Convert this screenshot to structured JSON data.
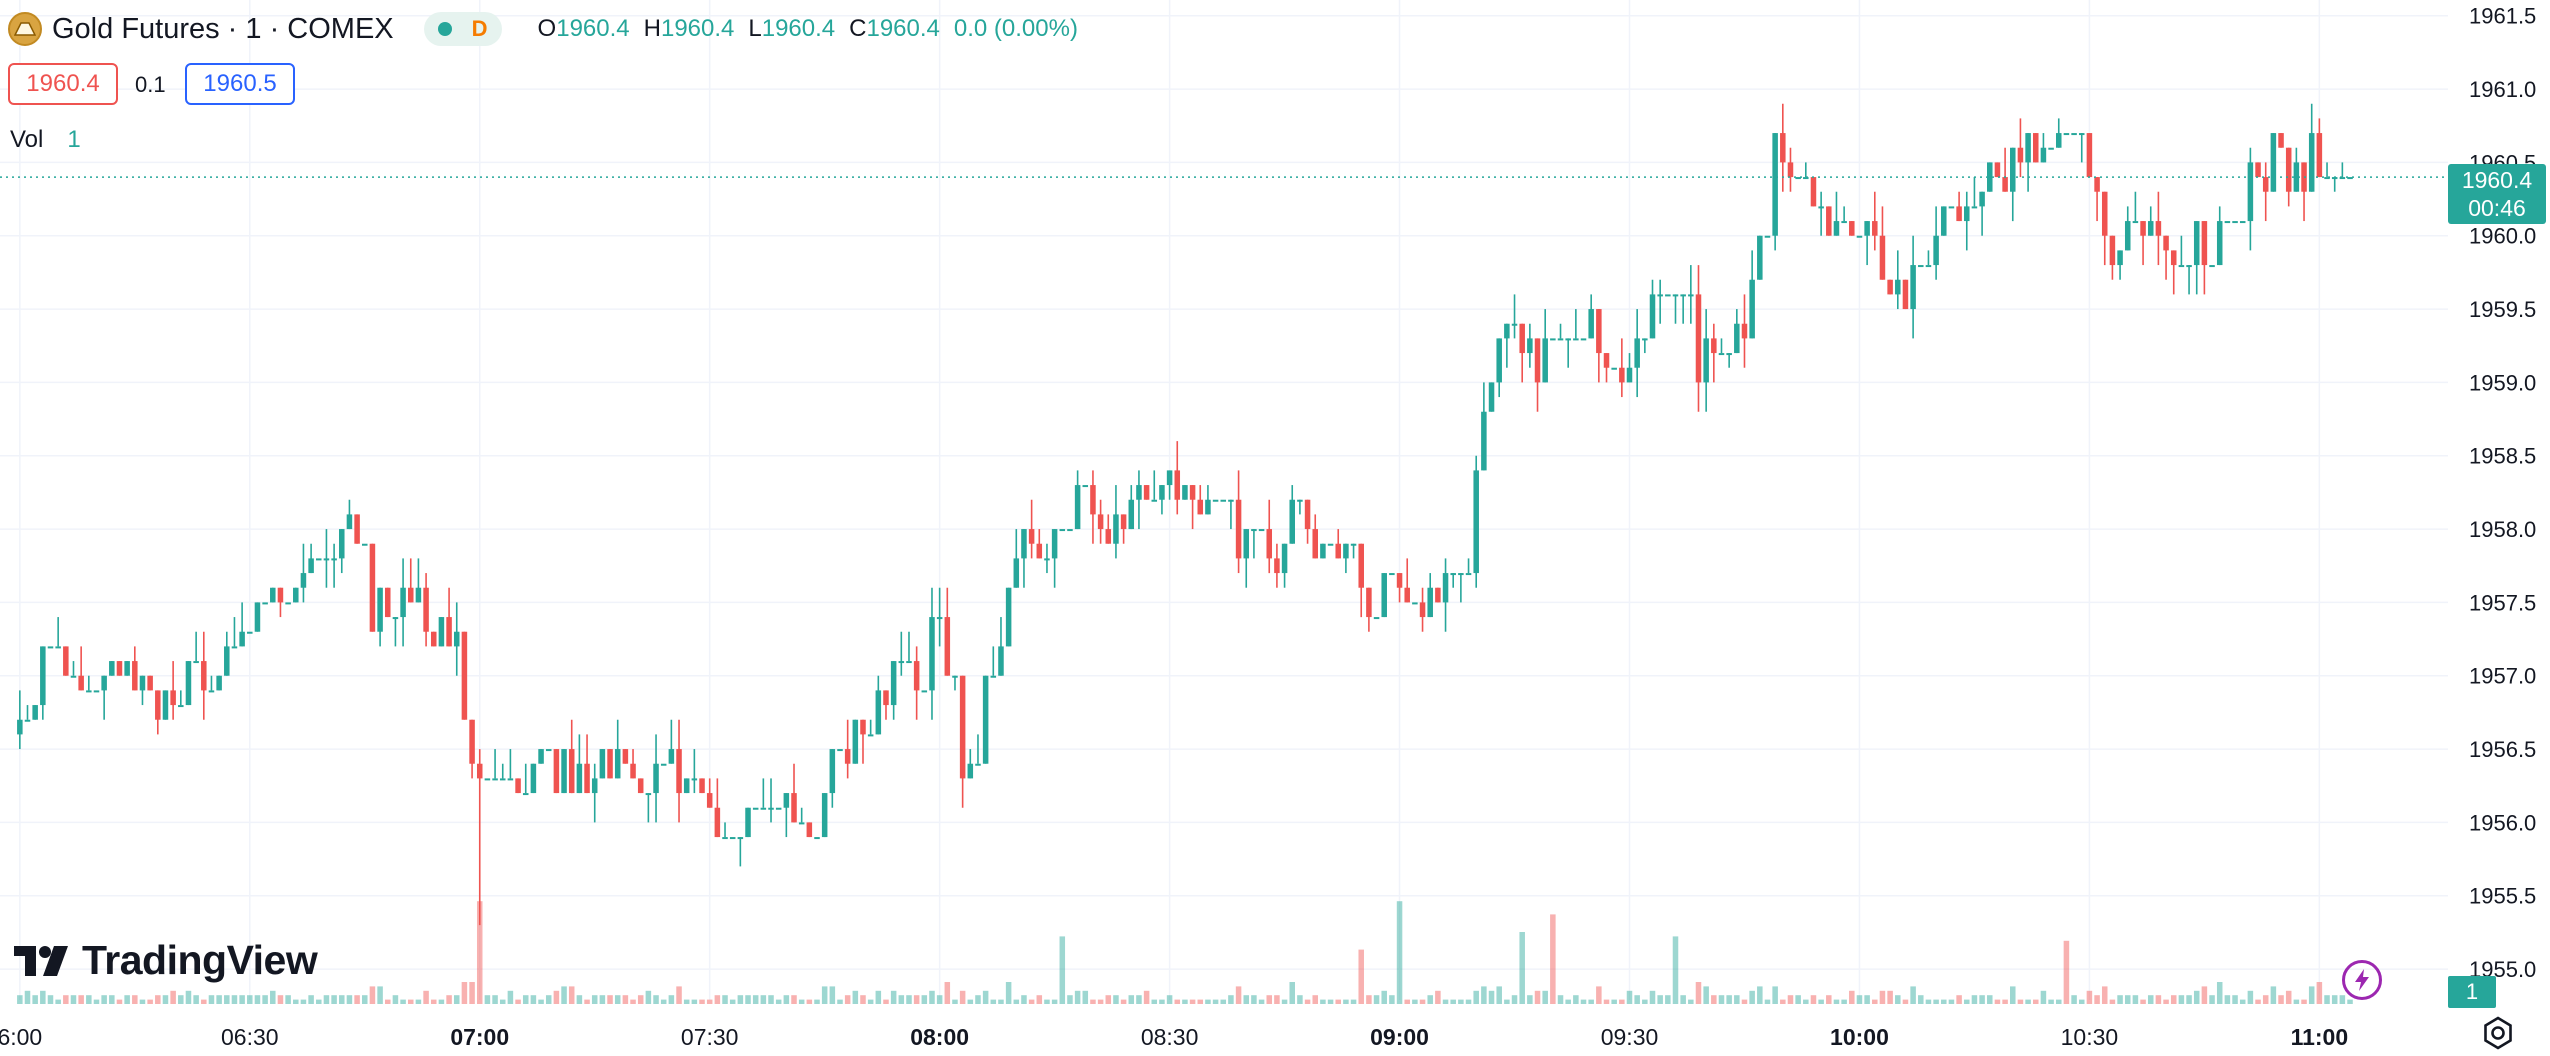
{
  "header": {
    "symbol_icon": "gold-coin-icon",
    "title": "Gold Futures · 1 · COMEX",
    "market_status_label": "D",
    "ohlc": {
      "o_label": "O",
      "o": "1960.4",
      "h_label": "H",
      "h": "1960.4",
      "l_label": "L",
      "l": "1960.4",
      "c_label": "C",
      "c": "1960.4",
      "change": "0.0 (0.00%)"
    }
  },
  "trade_boxes": {
    "sell": "1960.4",
    "spread": "0.1",
    "buy": "1960.5"
  },
  "volume_legend": {
    "label": "Vol",
    "value": "1"
  },
  "logo_text": "TradingView",
  "last_price": {
    "price": "1960.4",
    "countdown": "00:46"
  },
  "volume_tag": "1",
  "colors": {
    "up": "#26a69a",
    "down": "#ef5350",
    "grid": "#f0f3fa",
    "text": "#131722"
  },
  "chart_data": {
    "type": "candlestick",
    "title": "Gold Futures · 1 · COMEX",
    "interval": "1 minute",
    "y_axis": {
      "ticks": [
        "1955.0",
        "1955.5",
        "1956.0",
        "1956.5",
        "1957.0",
        "1957.5",
        "1958.0",
        "1958.5",
        "1959.0",
        "1959.5",
        "1960.0",
        "1960.5",
        "1961.0",
        "1961.5"
      ],
      "range": [
        1954.98,
        1961.58
      ]
    },
    "x_axis": {
      "ticks": [
        {
          "label": "6:00",
          "time": "06:00"
        },
        {
          "label": "06:30",
          "time": "06:30"
        },
        {
          "label": "07:00",
          "time": "07:00"
        },
        {
          "label": "07:30",
          "time": "07:30"
        },
        {
          "label": "08:00",
          "time": "08:00"
        },
        {
          "label": "08:30",
          "time": "08:30"
        },
        {
          "label": "09:00",
          "time": "09:00"
        },
        {
          "label": "09:30",
          "time": "09:30"
        },
        {
          "label": "10:00",
          "time": "10:00"
        },
        {
          "label": "10:30",
          "time": "10:30"
        },
        {
          "label": "11:00",
          "time": "11:00"
        }
      ],
      "bold_ticks": [
        "07:00",
        "08:00",
        "09:00",
        "10:00",
        "11:00"
      ],
      "range": [
        "05:59:30",
        "11:22:00"
      ]
    },
    "grid": true,
    "last_price": 1960.4,
    "price_keypoints": [
      {
        "t": "06:00",
        "p": 1956.55
      },
      {
        "t": "06:05",
        "p": 1957.2
      },
      {
        "t": "06:10",
        "p": 1956.9
      },
      {
        "t": "06:15",
        "p": 1957.0
      },
      {
        "t": "06:20",
        "p": 1956.8
      },
      {
        "t": "06:25",
        "p": 1957.0
      },
      {
        "t": "06:32",
        "p": 1957.4
      },
      {
        "t": "06:36",
        "p": 1957.7
      },
      {
        "t": "06:40",
        "p": 1957.9
      },
      {
        "t": "06:45",
        "p": 1958.0
      },
      {
        "t": "06:47",
        "p": 1957.5
      },
      {
        "t": "06:52",
        "p": 1957.6
      },
      {
        "t": "06:58",
        "p": 1957.1
      },
      {
        "t": "07:00",
        "p": 1956.3
      },
      {
        "t": "07:03",
        "p": 1956.1
      },
      {
        "t": "07:08",
        "p": 1956.4
      },
      {
        "t": "07:13",
        "p": 1956.3
      },
      {
        "t": "07:20",
        "p": 1956.4
      },
      {
        "t": "07:28",
        "p": 1956.3
      },
      {
        "t": "07:34",
        "p": 1956.0
      },
      {
        "t": "07:39",
        "p": 1956.2
      },
      {
        "t": "07:44",
        "p": 1956.0
      },
      {
        "t": "07:48",
        "p": 1956.5
      },
      {
        "t": "07:53",
        "p": 1956.9
      },
      {
        "t": "07:58",
        "p": 1957.1
      },
      {
        "t": "08:01",
        "p": 1957.5
      },
      {
        "t": "08:04",
        "p": 1956.2
      },
      {
        "t": "08:06",
        "p": 1956.7
      },
      {
        "t": "08:09",
        "p": 1957.3
      },
      {
        "t": "08:12",
        "p": 1957.9
      },
      {
        "t": "08:16",
        "p": 1958.0
      },
      {
        "t": "08:19",
        "p": 1958.3
      },
      {
        "t": "08:22",
        "p": 1958.0
      },
      {
        "t": "08:27",
        "p": 1958.1
      },
      {
        "t": "08:31",
        "p": 1958.4
      },
      {
        "t": "08:35",
        "p": 1958.2
      },
      {
        "t": "08:41",
        "p": 1957.9
      },
      {
        "t": "08:45",
        "p": 1957.8
      },
      {
        "t": "08:48",
        "p": 1958.1
      },
      {
        "t": "08:53",
        "p": 1957.8
      },
      {
        "t": "08:57",
        "p": 1957.4
      },
      {
        "t": "09:00",
        "p": 1957.7
      },
      {
        "t": "09:04",
        "p": 1957.4
      },
      {
        "t": "09:07",
        "p": 1957.7
      },
      {
        "t": "09:10",
        "p": 1958.3
      },
      {
        "t": "09:13",
        "p": 1958.9
      },
      {
        "t": "09:15",
        "p": 1959.5
      },
      {
        "t": "09:18",
        "p": 1959.1
      },
      {
        "t": "09:22",
        "p": 1959.2
      },
      {
        "t": "09:26",
        "p": 1959.3
      },
      {
        "t": "09:30",
        "p": 1959.1
      },
      {
        "t": "09:34",
        "p": 1959.6
      },
      {
        "t": "09:37",
        "p": 1959.9
      },
      {
        "t": "09:40",
        "p": 1959.2
      },
      {
        "t": "09:44",
        "p": 1959.1
      },
      {
        "t": "09:47",
        "p": 1959.6
      },
      {
        "t": "09:49",
        "p": 1960.1
      },
      {
        "t": "09:50",
        "p": 1960.6
      },
      {
        "t": "09:54",
        "p": 1960.2
      },
      {
        "t": "09:57",
        "p": 1960.1
      },
      {
        "t": "10:00",
        "p": 1960.0
      },
      {
        "t": "10:03",
        "p": 1959.9
      },
      {
        "t": "10:06",
        "p": 1959.6
      },
      {
        "t": "10:09",
        "p": 1959.7
      },
      {
        "t": "10:12",
        "p": 1960.0
      },
      {
        "t": "10:16",
        "p": 1960.3
      },
      {
        "t": "10:21",
        "p": 1960.5
      },
      {
        "t": "10:26",
        "p": 1960.8
      },
      {
        "t": "10:29",
        "p": 1960.8
      },
      {
        "t": "10:32",
        "p": 1960.3
      },
      {
        "t": "10:34",
        "p": 1959.9
      },
      {
        "t": "10:37",
        "p": 1960.2
      },
      {
        "t": "10:40",
        "p": 1960.0
      },
      {
        "t": "10:44",
        "p": 1959.9
      },
      {
        "t": "10:48",
        "p": 1960.0
      },
      {
        "t": "10:50",
        "p": 1960.4
      },
      {
        "t": "10:55",
        "p": 1960.5
      },
      {
        "t": "10:58",
        "p": 1960.4
      },
      {
        "t": "11:00",
        "p": 1960.5
      },
      {
        "t": "11:02",
        "p": 1960.3
      },
      {
        "t": "11:04",
        "p": 1960.4
      }
    ],
    "volume_spikes": [
      {
        "t": "07:00",
        "v": 17,
        "dir": "down"
      },
      {
        "t": "08:16",
        "v": 9,
        "dir": "up"
      },
      {
        "t": "08:55",
        "v": 6,
        "dir": "down"
      },
      {
        "t": "09:00",
        "v": 17,
        "dir": "up"
      },
      {
        "t": "09:16",
        "v": 10,
        "dir": "up"
      },
      {
        "t": "09:20",
        "v": 14,
        "dir": "down"
      },
      {
        "t": "09:36",
        "v": 9,
        "dir": "up"
      },
      {
        "t": "10:27",
        "v": 8,
        "dir": "down"
      }
    ]
  }
}
